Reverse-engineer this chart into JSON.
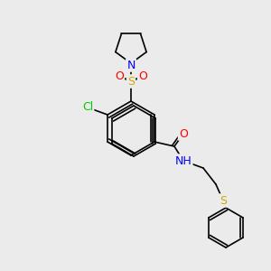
{
  "bg_color": "#ebebeb",
  "atom_colors": {
    "N": "#0000ff",
    "O": "#ff0000",
    "S": "#ccaa00",
    "Cl": "#00cc00",
    "C": "#000000",
    "H": "#555555"
  },
  "bond_color": "#000000",
  "bond_width": 1.2,
  "font_size_atom": 9,
  "font_size_small": 8
}
